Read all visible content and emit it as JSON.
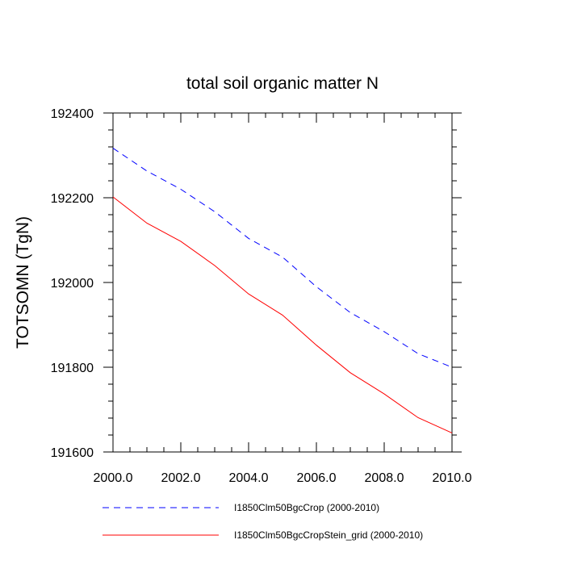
{
  "chart_data": {
    "type": "line",
    "title": "total soil organic matter N",
    "xlabel": "",
    "ylabel": "TOTSOMN  (TgN)",
    "xlim": [
      2000,
      2010
    ],
    "ylim": [
      191600,
      192400
    ],
    "grid": false,
    "legend_position": "bottom",
    "x_ticks": [
      2000,
      2002,
      2004,
      2006,
      2008,
      2010
    ],
    "x_tick_labels": [
      "2000.0",
      "2002.0",
      "2004.0",
      "2006.0",
      "2008.0",
      "2010.0"
    ],
    "y_ticks": [
      191600,
      191800,
      192000,
      192200,
      192400
    ],
    "y_tick_labels": [
      "191600",
      "191800",
      "192000",
      "192200",
      "192400"
    ],
    "x": [
      2000,
      2001,
      2002,
      2003,
      2004,
      2005,
      2006,
      2007,
      2008,
      2009,
      2010
    ],
    "series": [
      {
        "name": "I1850Clm50BgcCrop (2000-2010)",
        "color": "#0000ff",
        "line_style": "dashed",
        "values": [
          192317,
          192263,
          192220,
          192167,
          192104,
          192060,
          191990,
          191929,
          191884,
          191832,
          191800
        ]
      },
      {
        "name": "I1850Clm50BgcCropStein_grid (2000-2010)",
        "color": "#ff0000",
        "line_style": "solid",
        "values": [
          192202,
          192140,
          192097,
          192040,
          191973,
          191923,
          191852,
          191787,
          191737,
          191681,
          191645
        ]
      }
    ]
  }
}
